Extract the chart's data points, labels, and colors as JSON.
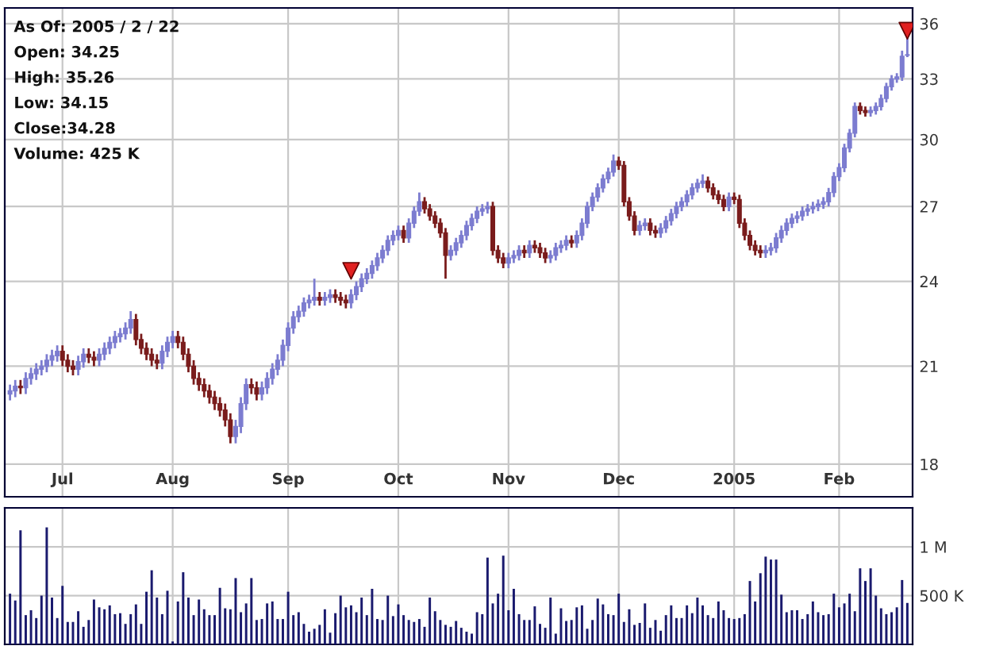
{
  "chart_data": [
    {
      "type": "candlestick",
      "log": true,
      "grid": true,
      "categories": [
        null,
        null,
        null,
        null,
        null,
        null,
        null,
        null,
        null,
        null,
        "Jul",
        null,
        null,
        null,
        null,
        null,
        null,
        null,
        null,
        null,
        null,
        null,
        null,
        null,
        null,
        null,
        null,
        null,
        null,
        null,
        null,
        "Aug",
        null,
        null,
        null,
        null,
        null,
        null,
        null,
        null,
        null,
        null,
        null,
        null,
        null,
        null,
        null,
        null,
        null,
        null,
        null,
        null,
        null,
        "Sep",
        null,
        null,
        null,
        null,
        null,
        null,
        null,
        null,
        null,
        null,
        null,
        null,
        null,
        null,
        null,
        null,
        null,
        null,
        null,
        null,
        "Oct",
        null,
        null,
        null,
        null,
        null,
        null,
        null,
        null,
        null,
        null,
        null,
        null,
        null,
        null,
        null,
        null,
        null,
        null,
        null,
        null,
        "Nov",
        null,
        null,
        null,
        null,
        null,
        null,
        null,
        null,
        null,
        null,
        null,
        null,
        null,
        null,
        null,
        null,
        null,
        null,
        null,
        null,
        "Dec",
        null,
        null,
        null,
        null,
        null,
        null,
        null,
        null,
        null,
        null,
        null,
        null,
        null,
        null,
        null,
        null,
        null,
        null,
        null,
        null,
        null,
        "2005",
        null,
        null,
        null,
        null,
        null,
        null,
        null,
        null,
        null,
        null,
        null,
        null,
        null,
        null,
        null,
        null,
        null,
        null,
        null,
        "Feb",
        null,
        null,
        null,
        null,
        null,
        null,
        null,
        null,
        null,
        null,
        null,
        null,
        null
      ],
      "ylim": [
        17.1,
        36.9
      ],
      "yticks": [
        18,
        21,
        24,
        27,
        30,
        33,
        36
      ],
      "colors": [
        "#7c7cd0",
        "#7c7cd0",
        "#7a1c1c",
        "#7c7cd0",
        "#7c7cd0",
        "#7c7cd0",
        "#7c7cd0",
        "#7c7cd0",
        "#7c7cd0",
        "#7c7cd0",
        "#7a1c1c",
        "#7a1c1c",
        "#7a1c1c",
        "#7c7cd0",
        "#7c7cd0",
        "#7a1c1c",
        "#7a1c1c",
        "#7c7cd0",
        "#7c7cd0",
        "#7c7cd0",
        "#7c7cd0",
        "#7c7cd0",
        "#7c7cd0",
        "#7c7cd0",
        "#7a1c1c",
        "#7a1c1c",
        "#7a1c1c",
        "#7a1c1c",
        "#7a1c1c",
        "#7c7cd0",
        "#7c7cd0",
        "#7c7cd0",
        "#7a1c1c",
        "#7a1c1c",
        "#7a1c1c",
        "#7a1c1c",
        "#7a1c1c",
        "#7a1c1c",
        "#7a1c1c",
        "#7a1c1c",
        "#7a1c1c",
        "#7a1c1c",
        "#7a1c1c",
        "#7c7cd0",
        "#7c7cd0",
        "#7c7cd0",
        "#7a1c1c",
        "#7a1c1c",
        "#7c7cd0",
        "#7c7cd0",
        "#7c7cd0",
        "#7c7cd0",
        "#7c7cd0",
        "#7c7cd0",
        "#7c7cd0",
        "#7c7cd0",
        "#7c7cd0",
        "#7c7cd0",
        "#7c7cd0",
        "#7a1c1c",
        "#7c7cd0",
        "#7c7cd0",
        "#7a1c1c",
        "#7a1c1c",
        "#7a1c1c",
        "#7c7cd0",
        "#7c7cd0",
        "#7c7cd0",
        "#7c7cd0",
        "#7c7cd0",
        "#7c7cd0",
        "#7c7cd0",
        "#7c7cd0",
        "#7c7cd0",
        "#7c7cd0",
        "#7a1c1c",
        "#7c7cd0",
        "#7c7cd0",
        "#7c7cd0",
        "#7a1c1c",
        "#7a1c1c",
        "#7a1c1c",
        "#7a1c1c",
        "#7a1c1c",
        "#7c7cd0",
        "#7c7cd0",
        "#7c7cd0",
        "#7c7cd0",
        "#7c7cd0",
        "#7c7cd0",
        "#7c7cd0",
        "#7c7cd0",
        "#7a1c1c",
        "#7a1c1c",
        "#7a1c1c",
        "#7c7cd0",
        "#7c7cd0",
        "#7c7cd0",
        "#7a1c1c",
        "#7c7cd0",
        "#7a1c1c",
        "#7a1c1c",
        "#7a1c1c",
        "#7c7cd0",
        "#7c7cd0",
        "#7c7cd0",
        "#7c7cd0",
        "#7a1c1c",
        "#7c7cd0",
        "#7c7cd0",
        "#7c7cd0",
        "#7c7cd0",
        "#7c7cd0",
        "#7c7cd0",
        "#7c7cd0",
        "#7c7cd0",
        "#7a1c1c",
        "#7a1c1c",
        "#7a1c1c",
        "#7a1c1c",
        "#7c7cd0",
        "#7c7cd0",
        "#7a1c1c",
        "#7a1c1c",
        "#7c7cd0",
        "#7c7cd0",
        "#7c7cd0",
        "#7c7cd0",
        "#7c7cd0",
        "#7c7cd0",
        "#7c7cd0",
        "#7c7cd0",
        "#7c7cd0",
        "#7a1c1c",
        "#7a1c1c",
        "#7a1c1c",
        "#7a1c1c",
        "#7c7cd0",
        "#7a1c1c",
        "#7a1c1c",
        "#7a1c1c",
        "#7a1c1c",
        "#7a1c1c",
        "#7a1c1c",
        "#7c7cd0",
        "#7c7cd0",
        "#7c7cd0",
        "#7c7cd0",
        "#7c7cd0",
        "#7c7cd0",
        "#7c7cd0",
        "#7c7cd0",
        "#7c7cd0",
        "#7c7cd0",
        "#7c7cd0",
        "#7c7cd0",
        "#7c7cd0",
        "#7c7cd0",
        "#7c7cd0",
        "#7c7cd0",
        "#7c7cd0",
        "#7c7cd0",
        "#7a1c1c",
        "#7a1c1c",
        "#7c7cd0",
        "#7c7cd0",
        "#7c7cd0",
        "#7c7cd0",
        "#7c7cd0",
        "#7c7cd0",
        "#7c7cd0",
        "#7c7cd0"
      ],
      "ohlc": [
        [
          20.1,
          20.4,
          19.9,
          20.2
        ],
        [
          20.2,
          20.55,
          20.0,
          20.35
        ],
        [
          20.35,
          20.55,
          20.1,
          20.3
        ],
        [
          20.3,
          20.8,
          20.1,
          20.6
        ],
        [
          20.6,
          20.95,
          20.4,
          20.75
        ],
        [
          20.75,
          21.1,
          20.55,
          20.9
        ],
        [
          20.9,
          21.2,
          20.7,
          21.0
        ],
        [
          21.0,
          21.4,
          20.8,
          21.2
        ],
        [
          21.2,
          21.55,
          21.0,
          21.35
        ],
        [
          21.35,
          21.7,
          21.15,
          21.5
        ],
        [
          21.5,
          21.7,
          21.0,
          21.2
        ],
        [
          21.2,
          21.4,
          20.8,
          21.0
        ],
        [
          21.0,
          21.2,
          20.7,
          20.9
        ],
        [
          20.9,
          21.35,
          20.7,
          21.15
        ],
        [
          21.15,
          21.6,
          20.95,
          21.4
        ],
        [
          21.4,
          21.6,
          21.1,
          21.3
        ],
        [
          21.3,
          21.5,
          21.0,
          21.2
        ],
        [
          21.2,
          21.6,
          21.0,
          21.4
        ],
        [
          21.4,
          21.8,
          21.2,
          21.6
        ],
        [
          21.6,
          22.0,
          21.4,
          21.8
        ],
        [
          21.8,
          22.2,
          21.6,
          22.0
        ],
        [
          22.0,
          22.3,
          21.8,
          22.1
        ],
        [
          22.1,
          22.5,
          21.9,
          22.3
        ],
        [
          22.3,
          22.9,
          22.1,
          22.6
        ],
        [
          22.6,
          22.8,
          21.7,
          21.9
        ],
        [
          21.9,
          22.1,
          21.4,
          21.6
        ],
        [
          21.6,
          21.8,
          21.2,
          21.4
        ],
        [
          21.4,
          21.6,
          21.0,
          21.2
        ],
        [
          21.2,
          21.4,
          20.9,
          21.1
        ],
        [
          21.1,
          21.7,
          20.9,
          21.5
        ],
        [
          21.5,
          22.0,
          21.3,
          21.8
        ],
        [
          21.8,
          22.2,
          21.6,
          22.0
        ],
        [
          22.0,
          22.2,
          21.6,
          21.8
        ],
        [
          21.8,
          22.0,
          21.2,
          21.4
        ],
        [
          21.4,
          21.6,
          20.8,
          21.0
        ],
        [
          21.0,
          21.2,
          20.4,
          20.6
        ],
        [
          20.6,
          20.8,
          20.2,
          20.4
        ],
        [
          20.4,
          20.6,
          20.0,
          20.2
        ],
        [
          20.2,
          20.4,
          19.8,
          20.0
        ],
        [
          20.0,
          20.2,
          19.6,
          19.8
        ],
        [
          19.8,
          20.0,
          19.4,
          19.6
        ],
        [
          19.6,
          19.8,
          19.1,
          19.3
        ],
        [
          19.3,
          19.5,
          18.6,
          18.8
        ],
        [
          18.8,
          19.3,
          18.6,
          19.1
        ],
        [
          19.1,
          20.0,
          18.9,
          19.8
        ],
        [
          19.8,
          20.6,
          19.6,
          20.4
        ],
        [
          20.4,
          20.6,
          20.1,
          20.3
        ],
        [
          20.3,
          20.5,
          19.9,
          20.1
        ],
        [
          20.1,
          20.5,
          19.9,
          20.3
        ],
        [
          20.3,
          20.8,
          20.1,
          20.6
        ],
        [
          20.6,
          21.1,
          20.4,
          20.9
        ],
        [
          20.9,
          21.4,
          20.7,
          21.2
        ],
        [
          21.2,
          21.9,
          21.0,
          21.7
        ],
        [
          21.7,
          22.5,
          21.5,
          22.3
        ],
        [
          22.3,
          22.9,
          22.1,
          22.7
        ],
        [
          22.7,
          23.1,
          22.5,
          22.9
        ],
        [
          22.9,
          23.4,
          22.7,
          23.2
        ],
        [
          23.2,
          23.5,
          23.0,
          23.3
        ],
        [
          23.3,
          24.1,
          23.1,
          23.4
        ],
        [
          23.4,
          23.6,
          23.1,
          23.3
        ],
        [
          23.3,
          23.6,
          23.1,
          23.4
        ],
        [
          23.4,
          23.7,
          23.2,
          23.5
        ],
        [
          23.5,
          23.7,
          23.2,
          23.4
        ],
        [
          23.4,
          23.6,
          23.1,
          23.3
        ],
        [
          23.3,
          23.5,
          23.0,
          23.2
        ],
        [
          23.2,
          23.7,
          23.0,
          23.5
        ],
        [
          23.5,
          24.0,
          23.3,
          23.8
        ],
        [
          23.8,
          24.3,
          23.6,
          24.1
        ],
        [
          24.1,
          24.5,
          23.9,
          24.3
        ],
        [
          24.3,
          24.8,
          24.1,
          24.6
        ],
        [
          24.6,
          25.1,
          24.4,
          24.9
        ],
        [
          24.9,
          25.4,
          24.7,
          25.2
        ],
        [
          25.2,
          25.8,
          25.0,
          25.6
        ],
        [
          25.6,
          26.0,
          25.4,
          25.8
        ],
        [
          25.8,
          26.2,
          25.6,
          26.0
        ],
        [
          26.0,
          26.2,
          25.5,
          25.7
        ],
        [
          25.7,
          26.5,
          25.5,
          26.3
        ],
        [
          26.3,
          27.0,
          26.1,
          26.8
        ],
        [
          26.8,
          27.6,
          26.6,
          27.2
        ],
        [
          27.2,
          27.4,
          26.7,
          26.9
        ],
        [
          26.9,
          27.1,
          26.4,
          26.6
        ],
        [
          26.6,
          26.8,
          26.1,
          26.3
        ],
        [
          26.3,
          26.5,
          25.7,
          25.9
        ],
        [
          25.9,
          26.1,
          24.1,
          25.0
        ],
        [
          25.0,
          25.4,
          24.8,
          25.2
        ],
        [
          25.2,
          25.7,
          25.0,
          25.5
        ],
        [
          25.5,
          26.0,
          25.3,
          25.8
        ],
        [
          25.8,
          26.4,
          25.6,
          26.2
        ],
        [
          26.2,
          26.7,
          26.0,
          26.5
        ],
        [
          26.5,
          27.0,
          26.3,
          26.8
        ],
        [
          26.8,
          27.1,
          26.6,
          26.9
        ],
        [
          26.9,
          27.2,
          26.7,
          27.0
        ],
        [
          27.0,
          27.2,
          25.0,
          25.2
        ],
        [
          25.2,
          25.4,
          24.7,
          24.9
        ],
        [
          24.9,
          25.1,
          24.5,
          24.7
        ],
        [
          24.7,
          25.1,
          24.5,
          24.9
        ],
        [
          24.9,
          25.2,
          24.7,
          25.0
        ],
        [
          25.0,
          25.4,
          24.8,
          25.2
        ],
        [
          25.2,
          25.4,
          24.9,
          25.1
        ],
        [
          25.1,
          25.6,
          24.9,
          25.4
        ],
        [
          25.4,
          25.6,
          25.1,
          25.3
        ],
        [
          25.3,
          25.5,
          24.9,
          25.1
        ],
        [
          25.1,
          25.3,
          24.7,
          24.9
        ],
        [
          24.9,
          25.2,
          24.7,
          25.0
        ],
        [
          25.0,
          25.5,
          24.8,
          25.3
        ],
        [
          25.3,
          25.6,
          25.1,
          25.4
        ],
        [
          25.4,
          25.8,
          25.2,
          25.6
        ],
        [
          25.6,
          25.8,
          25.3,
          25.5
        ],
        [
          25.5,
          26.0,
          25.3,
          25.8
        ],
        [
          25.8,
          26.5,
          25.6,
          26.3
        ],
        [
          26.3,
          27.2,
          26.1,
          27.0
        ],
        [
          27.0,
          27.6,
          26.8,
          27.4
        ],
        [
          27.4,
          28.0,
          27.2,
          27.8
        ],
        [
          27.8,
          28.4,
          27.6,
          28.2
        ],
        [
          28.2,
          28.7,
          28.0,
          28.5
        ],
        [
          28.5,
          29.3,
          28.3,
          29.0
        ],
        [
          29.0,
          29.2,
          28.6,
          28.8
        ],
        [
          28.8,
          29.0,
          27.0,
          27.2
        ],
        [
          27.2,
          27.4,
          26.4,
          26.6
        ],
        [
          26.6,
          26.8,
          25.8,
          26.0
        ],
        [
          26.0,
          26.4,
          25.8,
          26.2
        ],
        [
          26.2,
          26.5,
          26.0,
          26.3
        ],
        [
          26.3,
          26.5,
          25.8,
          26.0
        ],
        [
          26.0,
          26.2,
          25.7,
          25.9
        ],
        [
          25.9,
          26.3,
          25.7,
          26.1
        ],
        [
          26.1,
          26.6,
          25.9,
          26.4
        ],
        [
          26.4,
          26.9,
          26.2,
          26.7
        ],
        [
          26.7,
          27.2,
          26.5,
          27.0
        ],
        [
          27.0,
          27.4,
          26.8,
          27.2
        ],
        [
          27.2,
          27.7,
          27.0,
          27.5
        ],
        [
          27.5,
          28.0,
          27.3,
          27.8
        ],
        [
          27.8,
          28.2,
          27.6,
          28.0
        ],
        [
          28.0,
          28.4,
          27.8,
          28.1
        ],
        [
          28.1,
          28.3,
          27.6,
          27.8
        ],
        [
          27.8,
          28.0,
          27.3,
          27.5
        ],
        [
          27.5,
          27.7,
          27.1,
          27.3
        ],
        [
          27.3,
          27.5,
          26.8,
          27.0
        ],
        [
          27.0,
          27.6,
          26.8,
          27.4
        ],
        [
          27.4,
          27.6,
          27.1,
          27.3
        ],
        [
          27.3,
          27.5,
          26.1,
          26.3
        ],
        [
          26.3,
          26.5,
          25.6,
          25.8
        ],
        [
          25.8,
          26.0,
          25.2,
          25.4
        ],
        [
          25.4,
          25.6,
          25.0,
          25.2
        ],
        [
          25.2,
          25.4,
          24.9,
          25.1
        ],
        [
          25.1,
          25.4,
          24.9,
          25.2
        ],
        [
          25.2,
          25.5,
          25.0,
          25.3
        ],
        [
          25.3,
          25.9,
          25.1,
          25.7
        ],
        [
          25.7,
          26.2,
          25.5,
          26.0
        ],
        [
          26.0,
          26.5,
          25.8,
          26.3
        ],
        [
          26.3,
          26.7,
          26.1,
          26.5
        ],
        [
          26.5,
          26.8,
          26.3,
          26.6
        ],
        [
          26.6,
          27.0,
          26.4,
          26.8
        ],
        [
          26.8,
          27.1,
          26.6,
          26.9
        ],
        [
          26.9,
          27.2,
          26.7,
          27.0
        ],
        [
          27.0,
          27.3,
          26.8,
          27.1
        ],
        [
          27.1,
          27.4,
          26.9,
          27.2
        ],
        [
          27.2,
          27.8,
          27.0,
          27.6
        ],
        [
          27.6,
          28.5,
          27.4,
          28.3
        ],
        [
          28.3,
          28.9,
          28.1,
          28.7
        ],
        [
          28.7,
          29.8,
          28.5,
          29.6
        ],
        [
          29.6,
          30.5,
          29.4,
          30.3
        ],
        [
          30.3,
          31.8,
          30.1,
          31.6
        ],
        [
          31.6,
          31.8,
          31.2,
          31.4
        ],
        [
          31.4,
          31.6,
          31.1,
          31.3
        ],
        [
          31.3,
          31.6,
          31.1,
          31.4
        ],
        [
          31.4,
          31.8,
          31.2,
          31.6
        ],
        [
          31.6,
          32.2,
          31.4,
          32.0
        ],
        [
          32.0,
          32.8,
          31.8,
          32.6
        ],
        [
          32.6,
          33.2,
          32.4,
          33.0
        ],
        [
          33.0,
          33.3,
          32.8,
          33.1
        ],
        [
          33.1,
          34.5,
          32.9,
          34.2
        ],
        [
          34.25,
          35.26,
          34.15,
          34.28
        ]
      ],
      "series": [
        {
          "type": "scatter",
          "marker": "triangle",
          "color": "#e02020",
          "values": [
            null,
            null,
            null,
            null,
            null,
            null,
            null,
            null,
            null,
            null,
            null,
            null,
            null,
            null,
            null,
            null,
            null,
            null,
            null,
            null,
            null,
            null,
            null,
            null,
            null,
            null,
            null,
            null,
            null,
            null,
            null,
            null,
            null,
            null,
            null,
            null,
            null,
            null,
            null,
            null,
            null,
            null,
            null,
            null,
            null,
            null,
            null,
            null,
            null,
            null,
            null,
            null,
            null,
            null,
            null,
            null,
            null,
            null,
            null,
            null,
            null,
            null,
            null,
            null,
            null,
            24.4,
            null,
            null,
            null,
            null,
            null,
            null,
            null,
            null,
            null,
            null,
            null,
            null,
            null,
            null,
            null,
            null,
            null,
            null,
            null,
            null,
            null,
            null,
            null,
            null,
            null,
            null,
            null,
            null,
            null,
            null,
            null,
            null,
            null,
            null,
            null,
            null,
            null,
            null,
            null,
            null,
            null,
            null,
            null,
            null,
            null,
            null,
            null,
            null,
            null,
            null,
            null,
            null,
            null,
            null,
            null,
            null,
            null,
            null,
            null,
            null,
            null,
            null,
            null,
            null,
            null,
            null,
            null,
            null,
            null,
            null,
            null,
            null,
            null,
            null,
            null,
            null,
            null,
            null,
            null,
            null,
            null,
            null,
            null,
            null,
            null,
            null,
            null,
            null,
            null,
            null,
            null,
            null,
            null,
            null,
            null,
            null,
            null,
            null,
            null,
            null,
            null,
            null,
            null,
            null,
            null,
            35.6
          ]
        }
      ],
      "annotations": [
        "As Of: 2005 / 2 / 22",
        "Open: 34.25",
        "High: 35.26",
        "Low: 34.15",
        "Close:34.28",
        "Volume: 425 K"
      ]
    },
    {
      "type": "bar",
      "grid": true,
      "tick_labels": "y",
      "color": "#1a1a6e",
      "categories": [
        null,
        null,
        null,
        null,
        null,
        null,
        null,
        null,
        null,
        null,
        null,
        null,
        null,
        null,
        null,
        null,
        null,
        null,
        null,
        null,
        null,
        null,
        null,
        null,
        null,
        null,
        null,
        null,
        null,
        null,
        null,
        null,
        null,
        null,
        null,
        null,
        null,
        null,
        null,
        null,
        null,
        null,
        null,
        null,
        null,
        null,
        null,
        null,
        null,
        null,
        null,
        null,
        null,
        null,
        null,
        null,
        null,
        null,
        null,
        null,
        null,
        null,
        null,
        null,
        null,
        null,
        null,
        null,
        null,
        null,
        null,
        null,
        null,
        null,
        null,
        null,
        null,
        null,
        null,
        null,
        null,
        null,
        null,
        null,
        null,
        null,
        null,
        null,
        null,
        null,
        null,
        null,
        null,
        null,
        null,
        null,
        null,
        null,
        null,
        null,
        null,
        null,
        null,
        null,
        null,
        null,
        null,
        null,
        null,
        null,
        null,
        null,
        null,
        null,
        null,
        null,
        null,
        null,
        null,
        null,
        null,
        null,
        null,
        null,
        null,
        null,
        null,
        null,
        null,
        null,
        null,
        null,
        null,
        null,
        null,
        null,
        null,
        null,
        null,
        null,
        null,
        null,
        null,
        null,
        null,
        null,
        null,
        null,
        null,
        null,
        null,
        null,
        null,
        null,
        null,
        null,
        null,
        null,
        null,
        null,
        null,
        null,
        null,
        null,
        null,
        null,
        null,
        null,
        null,
        null,
        null,
        null
      ],
      "ylim": [
        0,
        1400000
      ],
      "yticks": [
        {
          "value": 500000,
          "label": "500 K"
        },
        {
          "value": 1000000,
          "label": "1 M"
        }
      ],
      "values": [
        520000,
        450000,
        1170000,
        300000,
        350000,
        270000,
        500000,
        1200000,
        480000,
        270000,
        600000,
        230000,
        230000,
        340000,
        180000,
        250000,
        460000,
        380000,
        360000,
        400000,
        310000,
        320000,
        210000,
        310000,
        410000,
        210000,
        540000,
        760000,
        480000,
        310000,
        550000,
        30000,
        440000,
        740000,
        480000,
        300000,
        460000,
        360000,
        300000,
        300000,
        580000,
        370000,
        360000,
        680000,
        330000,
        420000,
        680000,
        250000,
        260000,
        420000,
        440000,
        260000,
        260000,
        540000,
        300000,
        330000,
        210000,
        130000,
        160000,
        200000,
        360000,
        120000,
        320000,
        500000,
        380000,
        400000,
        330000,
        480000,
        300000,
        570000,
        260000,
        250000,
        500000,
        290000,
        410000,
        300000,
        250000,
        230000,
        260000,
        180000,
        480000,
        340000,
        250000,
        200000,
        180000,
        240000,
        170000,
        130000,
        110000,
        330000,
        310000,
        890000,
        420000,
        520000,
        910000,
        350000,
        570000,
        310000,
        250000,
        250000,
        390000,
        210000,
        170000,
        480000,
        110000,
        370000,
        240000,
        250000,
        380000,
        400000,
        160000,
        250000,
        470000,
        410000,
        310000,
        300000,
        520000,
        230000,
        360000,
        200000,
        220000,
        420000,
        170000,
        250000,
        140000,
        300000,
        400000,
        270000,
        270000,
        400000,
        320000,
        480000,
        400000,
        300000,
        270000,
        440000,
        350000,
        270000,
        260000,
        270000,
        310000,
        650000,
        440000,
        730000,
        900000,
        870000,
        870000,
        510000,
        330000,
        350000,
        350000,
        260000,
        310000,
        440000,
        330000,
        300000,
        310000,
        520000,
        380000,
        420000,
        520000,
        340000,
        780000,
        650000,
        780000,
        500000,
        370000,
        310000,
        330000,
        380000,
        660000,
        425000
      ]
    }
  ]
}
